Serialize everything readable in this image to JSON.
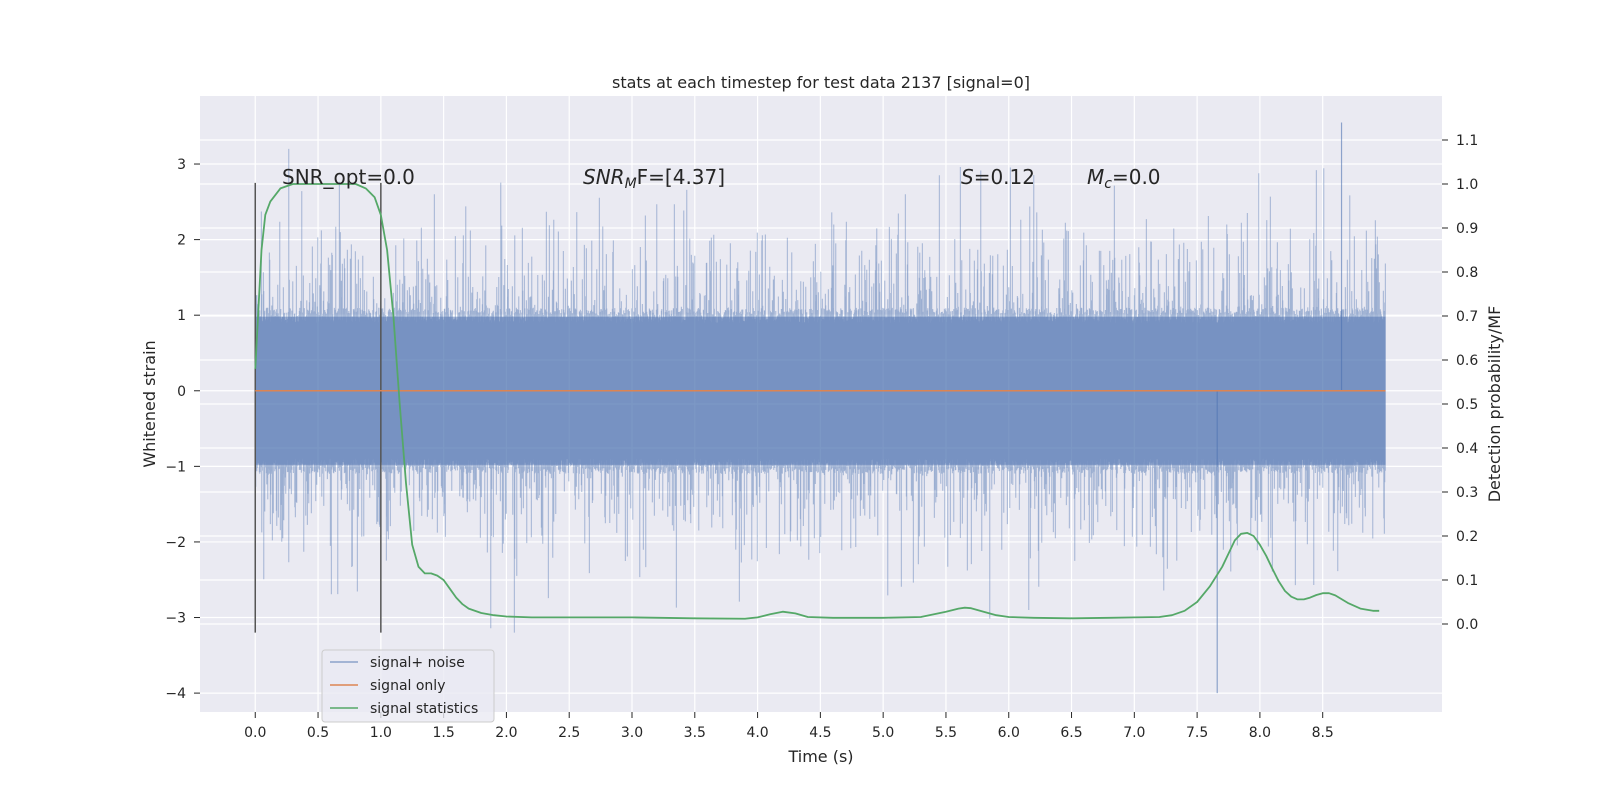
{
  "chart_data": {
    "type": "line",
    "title": "stats at each timestep for test data 2137 [signal=0]",
    "xlabel": "Time (s)",
    "ylabel": "Whitened strain",
    "y2label": "Detection probability/MF",
    "xlim": [
      -0.44,
      9.45
    ],
    "ylim": [
      -4.25,
      3.9
    ],
    "y2lim": [
      -0.2,
      1.2
    ],
    "xticks": [
      0.0,
      0.5,
      1.0,
      1.5,
      2.0,
      2.5,
      3.0,
      3.5,
      4.0,
      4.5,
      5.0,
      5.5,
      6.0,
      6.5,
      7.0,
      7.5,
      8.0,
      8.5
    ],
    "xtick_labels": [
      "0.0",
      "0.5",
      "1.0",
      "1.5",
      "2.0",
      "2.5",
      "3.0",
      "3.5",
      "4.0",
      "4.5",
      "5.0",
      "5.5",
      "6.0",
      "6.5",
      "7.0",
      "7.5",
      "8.0",
      "8.5"
    ],
    "yticks": [
      -4,
      -3,
      -2,
      -1,
      0,
      1,
      2,
      3
    ],
    "ytick_labels": [
      "−4",
      "−3",
      "−2",
      "−1",
      "0",
      "1",
      "2",
      "3"
    ],
    "y2ticks": [
      0.0,
      0.1,
      0.2,
      0.3,
      0.4,
      0.5,
      0.6,
      0.7,
      0.8,
      0.9,
      1.0,
      1.1
    ],
    "y2tick_labels": [
      "0.0",
      "0.1",
      "0.2",
      "0.3",
      "0.4",
      "0.5",
      "0.6",
      "0.7",
      "0.8",
      "0.9",
      "1.0",
      "1.1"
    ],
    "grid": true,
    "legend_position": "lower-left",
    "legend": [
      "signal+ noise",
      "signal only",
      "signal statistics"
    ],
    "colors": {
      "noise": "#4c72b0",
      "signal": "#dd8452",
      "stats": "#55a868",
      "vline": "#555555",
      "plot_bg": "#eaeaf2",
      "grid": "#ffffff"
    },
    "annotations": {
      "snr_opt": "SNR_opt=0.0",
      "snr_mf_main": "SNR",
      "snr_mf_sub": "M",
      "snr_mf_rest": "F=[4.37]",
      "s_var": "S",
      "s_val": "=0.12",
      "mc_main": "M",
      "mc_sub": "c",
      "mc_val": "=0.0"
    },
    "vlines_x": [
      0.0,
      1.0
    ],
    "vlines_range": [
      -3.2,
      2.75
    ],
    "series": [
      {
        "name": "signal+ noise",
        "axis": "left",
        "x_range": [
          0.0,
          9.0
        ],
        "core_band": [
          -0.98,
          0.98
        ],
        "extremes": {
          "max": 3.55,
          "min": -4.0
        }
      },
      {
        "name": "signal only",
        "axis": "left",
        "x": [
          0.0,
          9.0
        ],
        "y": [
          0.0,
          0.0
        ]
      },
      {
        "name": "signal statistics",
        "axis": "right",
        "x": [
          0.0,
          0.05,
          0.08,
          0.12,
          0.2,
          0.3,
          0.4,
          0.5,
          0.6,
          0.7,
          0.8,
          0.88,
          0.95,
          1.0,
          1.05,
          1.1,
          1.15,
          1.2,
          1.25,
          1.3,
          1.35,
          1.4,
          1.45,
          1.5,
          1.55,
          1.6,
          1.65,
          1.7,
          1.8,
          1.9,
          2.0,
          2.2,
          2.5,
          3.0,
          3.5,
          3.9,
          4.0,
          4.1,
          4.2,
          4.3,
          4.4,
          4.6,
          5.0,
          5.3,
          5.5,
          5.6,
          5.65,
          5.7,
          5.8,
          5.9,
          6.0,
          6.2,
          6.5,
          6.8,
          7.0,
          7.2,
          7.3,
          7.4,
          7.5,
          7.6,
          7.7,
          7.75,
          7.8,
          7.85,
          7.9,
          7.95,
          8.0,
          8.05,
          8.1,
          8.15,
          8.2,
          8.25,
          8.3,
          8.35,
          8.4,
          8.45,
          8.5,
          8.55,
          8.6,
          8.7,
          8.8,
          8.9,
          8.95
        ],
        "y": [
          0.58,
          0.85,
          0.93,
          0.96,
          0.99,
          1.0,
          1.0,
          1.0,
          1.0,
          1.0,
          1.0,
          0.99,
          0.97,
          0.93,
          0.85,
          0.7,
          0.5,
          0.32,
          0.18,
          0.13,
          0.115,
          0.115,
          0.11,
          0.1,
          0.08,
          0.06,
          0.045,
          0.035,
          0.025,
          0.02,
          0.017,
          0.015,
          0.015,
          0.015,
          0.013,
          0.012,
          0.015,
          0.022,
          0.028,
          0.024,
          0.016,
          0.014,
          0.014,
          0.016,
          0.028,
          0.035,
          0.037,
          0.036,
          0.028,
          0.02,
          0.016,
          0.014,
          0.013,
          0.014,
          0.015,
          0.016,
          0.02,
          0.03,
          0.05,
          0.085,
          0.13,
          0.16,
          0.19,
          0.205,
          0.207,
          0.2,
          0.18,
          0.155,
          0.125,
          0.097,
          0.075,
          0.062,
          0.056,
          0.056,
          0.06,
          0.066,
          0.07,
          0.07,
          0.065,
          0.048,
          0.035,
          0.03,
          0.03
        ]
      }
    ]
  }
}
